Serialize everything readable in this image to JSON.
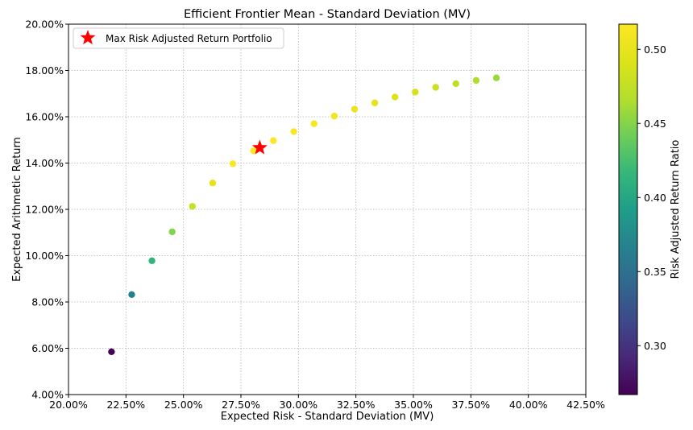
{
  "chart_data": {
    "type": "scatter",
    "title": "Efficient Frontier Mean - Standard Deviation (MV)",
    "xlabel": "Expected Risk - Standard Deviation (MV)",
    "ylabel": "Expected Arithmetic Return",
    "xlim": [
      0.2,
      0.425
    ],
    "ylim": [
      0.04,
      0.2
    ],
    "x_ticks": [
      0.2,
      0.225,
      0.25,
      0.275,
      0.3,
      0.325,
      0.35,
      0.375,
      0.4,
      0.425
    ],
    "x_tick_labels": [
      "20.00%",
      "22.50%",
      "25.00%",
      "27.50%",
      "30.00%",
      "32.50%",
      "35.00%",
      "37.50%",
      "40.00%",
      "42.50%"
    ],
    "y_ticks": [
      0.04,
      0.06,
      0.08,
      0.1,
      0.12,
      0.14,
      0.16,
      0.18,
      0.2
    ],
    "y_tick_labels": [
      "4.00%",
      "6.00%",
      "8.00%",
      "10.00%",
      "12.00%",
      "14.00%",
      "16.00%",
      "18.00%",
      "20.00%"
    ],
    "grid": true,
    "colormap": "viridis",
    "colorbar": {
      "label": "Risk Adjusted Return Ratio",
      "range": [
        0.267,
        0.517
      ],
      "ticks": [
        0.3,
        0.35,
        0.4,
        0.45,
        0.5
      ],
      "tick_labels": [
        "0.30",
        "0.35",
        "0.40",
        "0.45",
        "0.50"
      ]
    },
    "points": [
      {
        "x": 0.2187,
        "y": 0.0585,
        "ratio": 0.268
      },
      {
        "x": 0.2275,
        "y": 0.0832,
        "ratio": 0.366
      },
      {
        "x": 0.2363,
        "y": 0.0978,
        "ratio": 0.414
      },
      {
        "x": 0.2451,
        "y": 0.1103,
        "ratio": 0.45
      },
      {
        "x": 0.2539,
        "y": 0.1213,
        "ratio": 0.478
      },
      {
        "x": 0.2627,
        "y": 0.1314,
        "ratio": 0.5
      },
      {
        "x": 0.2715,
        "y": 0.1397,
        "ratio": 0.514
      },
      {
        "x": 0.2805,
        "y": 0.1453,
        "ratio": 0.518
      },
      {
        "x": 0.2891,
        "y": 0.1497,
        "ratio": 0.517
      },
      {
        "x": 0.298,
        "y": 0.1536,
        "ratio": 0.515
      },
      {
        "x": 0.3068,
        "y": 0.157,
        "ratio": 0.512
      },
      {
        "x": 0.3156,
        "y": 0.1603,
        "ratio": 0.508
      },
      {
        "x": 0.3244,
        "y": 0.1633,
        "ratio": 0.503
      },
      {
        "x": 0.3332,
        "y": 0.166,
        "ratio": 0.498
      },
      {
        "x": 0.342,
        "y": 0.1685,
        "ratio": 0.493
      },
      {
        "x": 0.3508,
        "y": 0.1707,
        "ratio": 0.487
      },
      {
        "x": 0.3597,
        "y": 0.1727,
        "ratio": 0.48
      },
      {
        "x": 0.3685,
        "y": 0.1743,
        "ratio": 0.473
      },
      {
        "x": 0.3773,
        "y": 0.1757,
        "ratio": 0.466
      },
      {
        "x": 0.3861,
        "y": 0.1768,
        "ratio": 0.458
      }
    ],
    "highlight": {
      "x": 0.2832,
      "y": 0.1466,
      "marker": "star",
      "color": "#ff0000",
      "legend_label": "Max Risk Adjusted Return Portfolio"
    },
    "legend_position": "top-left"
  }
}
